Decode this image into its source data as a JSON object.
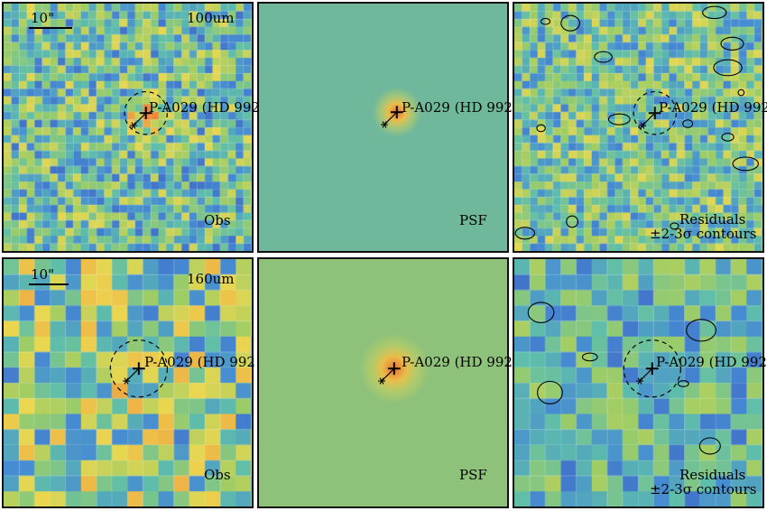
{
  "source_label": "P-A029 (HD 992",
  "scale_label": "10\"",
  "rows": [
    {
      "band": "100um",
      "panels": [
        {
          "label": "Obs",
          "kind": "obs"
        },
        {
          "label": "PSF",
          "kind": "psf"
        },
        {
          "label": "Residuals",
          "label2": "±2-3σ contours",
          "kind": "res"
        }
      ]
    },
    {
      "band": "160um",
      "panels": [
        {
          "label": "Obs",
          "kind": "obs"
        },
        {
          "label": "PSF",
          "kind": "psf"
        },
        {
          "label": "Residuals",
          "label2": "±2-3σ contours",
          "kind": "res"
        }
      ]
    }
  ],
  "colors": {
    "psf_background": "#6fb89c",
    "psf_background_160": "#8ec27a",
    "marker": "#000000"
  }
}
